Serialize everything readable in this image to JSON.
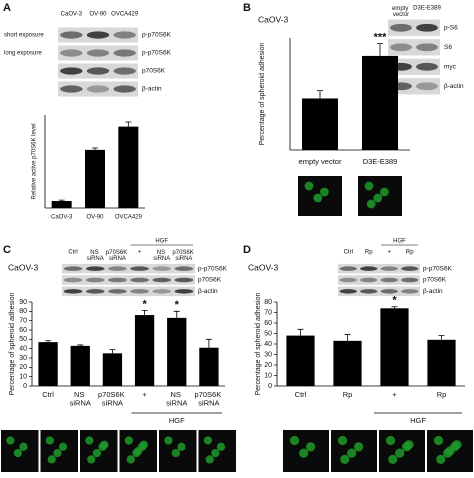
{
  "chart_data": [
    {
      "type": "bar",
      "panel": "A",
      "ylabel": "Relative active p70S6K level",
      "categories": [
        "CaOV-3",
        "OV-90",
        "OVCA429"
      ],
      "values": [
        0.15,
        1.25,
        1.75
      ],
      "errors": [
        0.02,
        0.04,
        0.1
      ],
      "color": "#000000",
      "ylim": [
        0,
        2
      ],
      "blot": {
        "columns": [
          "CaOV-3",
          "OV-90",
          "OVCA429"
        ],
        "rows": [
          "p-p70S6K",
          "p-p70S6K",
          "p70S6K",
          "β-actin"
        ],
        "notes": [
          "short exposure",
          "long exposure"
        ]
      }
    },
    {
      "type": "bar",
      "panel": "B",
      "cell_line": "CaOV-3",
      "ylabel": "Percentage of spheroid adhesion",
      "categories": [
        "empty vector",
        "D3E-E389"
      ],
      "values": [
        46,
        84
      ],
      "errors": [
        7,
        11
      ],
      "color": "#000000",
      "ylim": [
        0,
        100
      ],
      "annotations": [
        {
          "text": "***",
          "at": 1
        }
      ],
      "blot": {
        "columns": [
          "empty vector",
          "D3E-E389"
        ],
        "rows": [
          "p-S6",
          "S6",
          "myc",
          "β-actin"
        ]
      }
    },
    {
      "type": "bar",
      "panel": "C",
      "cell_line": "CaOV-3",
      "ylabel": "Percentage of spheroid adhesion",
      "categories": [
        "Ctrl",
        "NS siRNA",
        "p70S6K siRNA",
        "+",
        "NS siRNA",
        "p70S6K siRNA"
      ],
      "values": [
        47,
        43,
        35,
        76,
        73,
        41
      ],
      "errors": [
        1.5,
        1,
        4,
        5,
        7,
        9
      ],
      "color": "#000000",
      "ylim": [
        0,
        90
      ],
      "yticks": [
        0,
        10,
        20,
        30,
        40,
        50,
        60,
        70,
        80,
        90
      ],
      "annotations": [
        {
          "text": "*",
          "at": 3
        },
        {
          "text": "*",
          "at": 4
        }
      ],
      "group": {
        "label": "HGF",
        "from": 3,
        "to": 5
      },
      "blot": {
        "columns": [
          "Ctrl",
          "NS siRNA",
          "p70S6K siRNA",
          "+",
          "NS siRNA",
          "p70S6K siRNA"
        ],
        "rows": [
          "p-p70S6K",
          "p70S6K",
          "β-actin"
        ],
        "group": {
          "label": "HGF",
          "from": 3,
          "to": 5
        }
      }
    },
    {
      "type": "bar",
      "panel": "D",
      "cell_line": "CaOV-3",
      "ylabel": "Percentage of spheroid adhesion",
      "categories": [
        "Ctrl",
        "Rp",
        "+",
        "Rp"
      ],
      "values": [
        48,
        43,
        74,
        44
      ],
      "errors": [
        6,
        6,
        1.5,
        4
      ],
      "color": "#000000",
      "ylim": [
        0,
        80
      ],
      "yticks": [
        0,
        10,
        20,
        30,
        40,
        50,
        60,
        70,
        80
      ],
      "annotations": [
        {
          "text": "*",
          "at": 2
        }
      ],
      "group": {
        "label": "HGF",
        "from": 2,
        "to": 3
      },
      "blot": {
        "columns": [
          "Ctrl",
          "Rp",
          "+",
          "Rp"
        ],
        "rows": [
          "p-p70S6K",
          "p70S6K",
          "β-actin"
        ],
        "group": {
          "label": "HGF",
          "from": 2,
          "to": 3
        }
      }
    }
  ]
}
